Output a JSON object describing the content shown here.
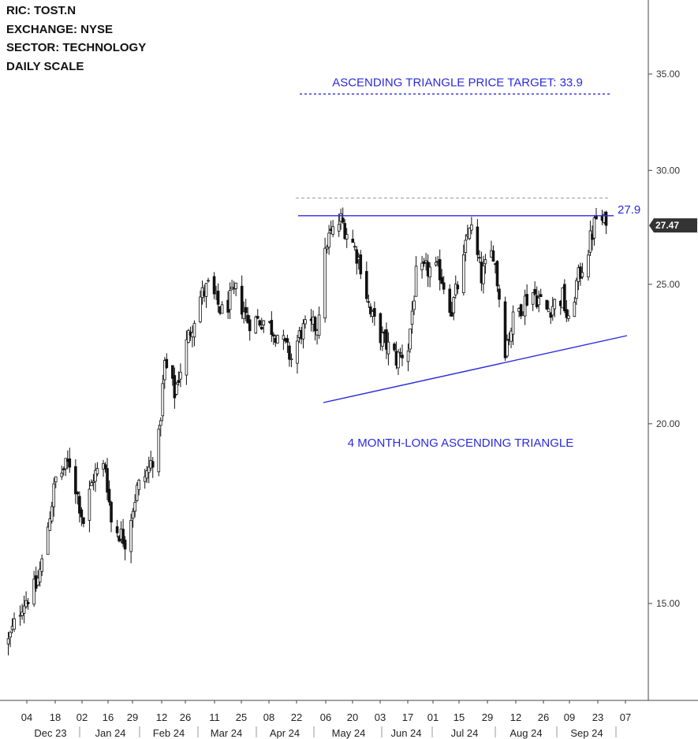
{
  "info": {
    "ric": "RIC: TOST.N",
    "exchange": "EXCHANGE: NYSE",
    "sector": "SECTOR: TECHNOLOGY",
    "scale": "DAILY SCALE"
  },
  "chart_data": {
    "type": "candlestick",
    "scale": "log",
    "ylim": [
      13.2,
      38.5
    ],
    "y_ticks": [
      "15.00",
      "20.00",
      "25.00",
      "30.00",
      "35.00"
    ],
    "last_price": "27.47",
    "x_day_ticks": [
      "04",
      "18",
      "02",
      "16",
      "29",
      "12",
      "26",
      "11",
      "25",
      "08",
      "22",
      "06",
      "20",
      "03",
      "17",
      "01",
      "15",
      "29",
      "12",
      "26",
      "09",
      "23",
      "07"
    ],
    "x_month_ticks": [
      "Dec 23",
      "Jan 24",
      "Feb 24",
      "Mar 24",
      "Apr 24",
      "May 24",
      "Jun 24",
      "Jul 24",
      "Aug 24",
      "Sep 24"
    ],
    "anchors": [
      {
        "date": "2023-11-28",
        "price": 14.1
      },
      {
        "date": "2023-12-05",
        "price": 15.0
      },
      {
        "date": "2023-12-12",
        "price": 15.4
      },
      {
        "date": "2023-12-15",
        "price": 16.0
      },
      {
        "date": "2023-12-18",
        "price": 17.0
      },
      {
        "date": "2023-12-22",
        "price": 18.3
      },
      {
        "date": "2023-12-29",
        "price": 18.8
      },
      {
        "date": "2024-01-05",
        "price": 17.1
      },
      {
        "date": "2024-01-10",
        "price": 18.4
      },
      {
        "date": "2024-01-16",
        "price": 18.7
      },
      {
        "date": "2024-01-19",
        "price": 17.1
      },
      {
        "date": "2024-01-26",
        "price": 16.6
      },
      {
        "date": "2024-02-01",
        "price": 18.0
      },
      {
        "date": "2024-02-07",
        "price": 18.6
      },
      {
        "date": "2024-02-12",
        "price": 19.5
      },
      {
        "date": "2024-02-15",
        "price": 22.0
      },
      {
        "date": "2024-02-20",
        "price": 21.0
      },
      {
        "date": "2024-02-27",
        "price": 23.0
      },
      {
        "date": "2024-03-04",
        "price": 24.5
      },
      {
        "date": "2024-03-08",
        "price": 24.9
      },
      {
        "date": "2024-03-15",
        "price": 23.9
      },
      {
        "date": "2024-03-22",
        "price": 24.7
      },
      {
        "date": "2024-03-28",
        "price": 23.6
      },
      {
        "date": "2024-04-05",
        "price": 23.6
      },
      {
        "date": "2024-04-12",
        "price": 23.1
      },
      {
        "date": "2024-04-19",
        "price": 22.2
      },
      {
        "date": "2024-04-24",
        "price": 23.2
      },
      {
        "date": "2024-05-02",
        "price": 23.4
      },
      {
        "date": "2024-05-07",
        "price": 26.8
      },
      {
        "date": "2024-05-14",
        "price": 27.7
      },
      {
        "date": "2024-05-20",
        "price": 26.7
      },
      {
        "date": "2024-05-24",
        "price": 25.8
      },
      {
        "date": "2024-05-29",
        "price": 23.8
      },
      {
        "date": "2024-06-04",
        "price": 22.9
      },
      {
        "date": "2024-06-11",
        "price": 22.2
      },
      {
        "date": "2024-06-17",
        "price": 22.6
      },
      {
        "date": "2024-06-21",
        "price": 25.3
      },
      {
        "date": "2024-06-27",
        "price": 25.6
      },
      {
        "date": "2024-07-03",
        "price": 25.5
      },
      {
        "date": "2024-07-09",
        "price": 24.0
      },
      {
        "date": "2024-07-15",
        "price": 25.9
      },
      {
        "date": "2024-07-18",
        "price": 27.6
      },
      {
        "date": "2024-07-24",
        "price": 25.3
      },
      {
        "date": "2024-07-30",
        "price": 26.4
      },
      {
        "date": "2024-08-05",
        "price": 22.6
      },
      {
        "date": "2024-08-09",
        "price": 23.6
      },
      {
        "date": "2024-08-14",
        "price": 24.3
      },
      {
        "date": "2024-08-19",
        "price": 24.7
      },
      {
        "date": "2024-08-26",
        "price": 24.0
      },
      {
        "date": "2024-09-03",
        "price": 24.5
      },
      {
        "date": "2024-09-06",
        "price": 23.4
      },
      {
        "date": "2024-09-10",
        "price": 25.0
      },
      {
        "date": "2024-09-16",
        "price": 26.5
      },
      {
        "date": "2024-09-20",
        "price": 27.8
      },
      {
        "date": "2024-09-25",
        "price": 27.47
      }
    ],
    "annotations": {
      "target_label": "ASCENDING TRIANGLE PRICE TARGET: 33.9",
      "target_price": 33.9,
      "resistance_label": "27.9",
      "resistance_price": 27.9,
      "support_line": [
        {
          "date": "2024-05-01",
          "price": 20.8
        },
        {
          "date": "2024-09-29",
          "price": 23.0
        }
      ],
      "gray_dashed_price": 28.7,
      "pattern_label": "4 MONTH-LONG ASCENDING TRIANGLE"
    },
    "colors": {
      "candle": "#111111",
      "annotation": "#2a2ae0",
      "guide": "#aaaaaa",
      "last_badge": "#333333"
    }
  }
}
